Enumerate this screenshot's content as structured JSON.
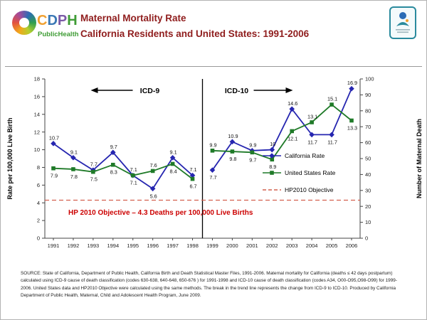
{
  "header": {
    "title_line1": "Maternal Mortality Rate",
    "title_line2": "California Residents and United States: 1991-2006",
    "cdph_logo": {
      "letters": [
        "C",
        "D",
        "P",
        "H"
      ],
      "subtitle": "PublicHealth"
    }
  },
  "chart_data": {
    "type": "line",
    "title": "Maternal Mortality Rate, California Residents and United States: 1991-2006",
    "x": [
      1991,
      1992,
      1993,
      1994,
      1995,
      1996,
      1997,
      1998,
      1999,
      2000,
      2001,
      2002,
      2003,
      2004,
      2005,
      2006
    ],
    "series": [
      {
        "name": "California Rate",
        "color": "#2626b0",
        "marker": "diamond",
        "values": [
          10.7,
          9.1,
          7.7,
          9.7,
          7.1,
          5.6,
          9.1,
          7.1,
          7.7,
          10.9,
          9.9,
          10,
          14.6,
          11.7,
          11.7,
          16.9
        ]
      },
      {
        "name": "United States Rate",
        "color": "#1f7a28",
        "marker": "square",
        "values": [
          7.9,
          7.8,
          7.5,
          8.3,
          7.1,
          7.6,
          8.4,
          6.7,
          9.9,
          9.8,
          9.7,
          8.9,
          12.1,
          13.1,
          15.1,
          13.3
        ]
      },
      {
        "name": "HP2010 Objective",
        "color": "#d4604f",
        "style": "dashed",
        "constant": 4.3
      }
    ],
    "ylabel_left": "Rate per 100,000 Live Birth",
    "ylabel_right": "Number of Maternal Death",
    "ylim_left": [
      0,
      18
    ],
    "ylim_right": [
      0,
      100
    ],
    "left_ticks": [
      0,
      2,
      4,
      6,
      8,
      10,
      12,
      14,
      16,
      18
    ],
    "right_ticks": [
      0,
      10,
      20,
      30,
      40,
      50,
      60,
      70,
      80,
      90,
      100
    ],
    "grid": false,
    "legend_position": "right-inside",
    "break_between": [
      1998,
      1999
    ],
    "annotations": {
      "icd9": "ICD-9",
      "icd10": "ICD-10",
      "hp_note": "HP 2010 Objective – 4.3 Deaths per 100,000 Live Births"
    }
  },
  "footer": {
    "source": "SOURCE: State of California, Department of Public Health, California Birth and Death Statistical Master Files, 1991-2006.  Maternal mortality for California (deaths ≤ 42 days postpartum) calculated using ICD-9 cause of death classification (codes 630-638, 640-648, 650-676 )  for 1991-1998 and ICD-10 cause of death classification (codes A34, O00-O95,O98-O99)  for 1999-2006.  United States data and HP2010 Objective were calculated using the same methods.  The break in the trend line represents the change from ICD-9 to ICD-10. Produced by California Department of Public Health, Maternal, Child and Adolescent Health Program, June 2009."
  }
}
